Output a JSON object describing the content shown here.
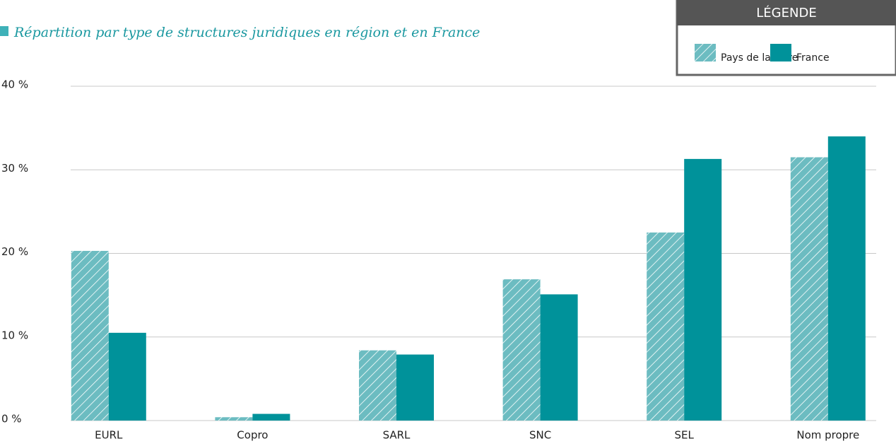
{
  "chart_data": {
    "type": "bar",
    "title": "Répartition par type de structures juridiques en région et en France",
    "legend_title": "LÉGENDE",
    "legend_position": "top-right",
    "categories": [
      "EURL",
      "Copro",
      "SARL",
      "SNC",
      "SEL",
      "Nom propre"
    ],
    "series": [
      {
        "name": "Pays de la Loire",
        "color": "#6cbcc1",
        "pattern": "hatch",
        "values": [
          20.3,
          0.4,
          8.4,
          16.9,
          22.5,
          31.5
        ]
      },
      {
        "name": "France",
        "color": "#00929a",
        "values": [
          10.5,
          0.8,
          7.9,
          15.1,
          31.3,
          34.0
        ]
      }
    ],
    "ylim": [
      0,
      40
    ],
    "yticks": [
      {
        "value": 0,
        "label": "0 %"
      },
      {
        "value": 10,
        "label": "10 %"
      },
      {
        "value": 20,
        "label": "20 %"
      },
      {
        "value": 30,
        "label": "30 %"
      },
      {
        "value": 40,
        "label": "40 %"
      }
    ],
    "grid": true
  }
}
